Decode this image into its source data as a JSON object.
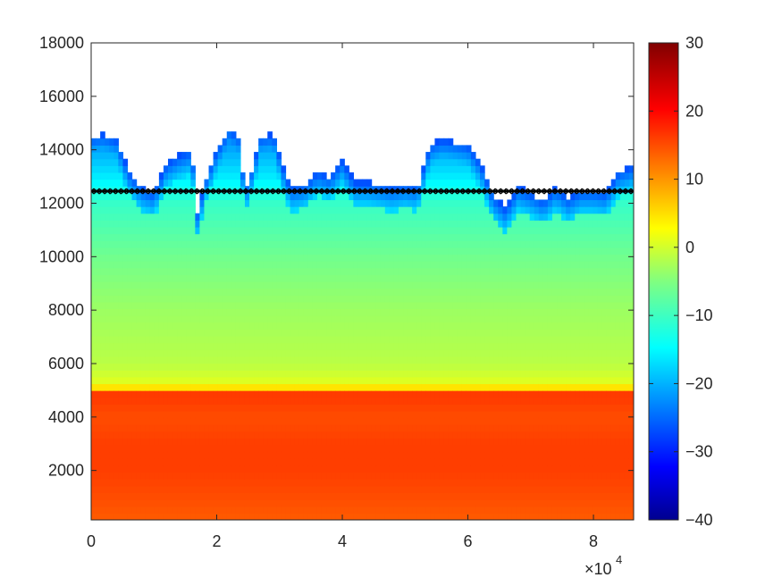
{
  "chart_data": {
    "type": "heatmap",
    "title": "",
    "xlabel": "",
    "ylabel": "",
    "x_multiplier_label": "×10",
    "x_multiplier_exponent": "4",
    "xlim": [
      0,
      86400
    ],
    "ylim": [
      150,
      18000
    ],
    "x_ticks": [
      0,
      20000,
      40000,
      60000,
      80000
    ],
    "x_tick_labels": [
      "0",
      "2",
      "4",
      "6",
      "8"
    ],
    "y_ticks": [
      2000,
      4000,
      6000,
      8000,
      10000,
      12000,
      14000,
      16000,
      18000
    ],
    "y_tick_labels": [
      "2000",
      "4000",
      "6000",
      "8000",
      "10000",
      "12000",
      "14000",
      "16000",
      "18000"
    ],
    "colorbar": {
      "colormap": "jet",
      "range": [
        -40,
        30
      ],
      "ticks": [
        -40,
        -30,
        -20,
        -10,
        0,
        10,
        20,
        30
      ],
      "tick_labels": [
        "−40",
        "−30",
        "−20",
        "−10",
        "0",
        "10",
        "20",
        "30"
      ]
    },
    "grid": false,
    "legend": "none",
    "overlay_line": {
      "y": 12450,
      "color": "#000000",
      "marker": "x"
    },
    "bright_band_height": 4800,
    "profile_top_heights": {
      "x": [
        0,
        2000,
        4000,
        6000,
        8000,
        10000,
        12000,
        14000,
        16000,
        17000,
        18000,
        20000,
        22000,
        23500,
        24500,
        26000,
        27000,
        29000,
        31000,
        32000,
        34000,
        36000,
        38000,
        40000,
        42000,
        44000,
        46000,
        48000,
        50000,
        52000,
        54000,
        56000,
        58000,
        60000,
        62000,
        64000,
        66000,
        68000,
        70000,
        72000,
        74000,
        76000,
        78000,
        80000,
        82000,
        84000,
        86400
      ],
      "top": [
        14500,
        14600,
        14400,
        13200,
        12600,
        12400,
        13500,
        13800,
        14000,
        11500,
        12800,
        14000,
        14800,
        14500,
        12500,
        13600,
        14500,
        14600,
        13000,
        12600,
        12700,
        13200,
        13000,
        13600,
        12800,
        12800,
        12700,
        12600,
        12700,
        12600,
        14200,
        14400,
        14300,
        14200,
        13500,
        12300,
        11800,
        12600,
        12400,
        12100,
        12600,
        12200,
        12500,
        12500,
        12400,
        13200,
        13400
      ]
    },
    "value_profile": {
      "height": [
        150,
        1000,
        2000,
        3000,
        4000,
        4600,
        4850,
        5200,
        6000,
        8000,
        10000,
        12000,
        13000,
        14500
      ],
      "value": [
        15,
        16,
        17,
        17,
        16,
        17,
        18,
        2,
        -1,
        -3,
        -6,
        -10,
        -15,
        -22
      ]
    }
  }
}
